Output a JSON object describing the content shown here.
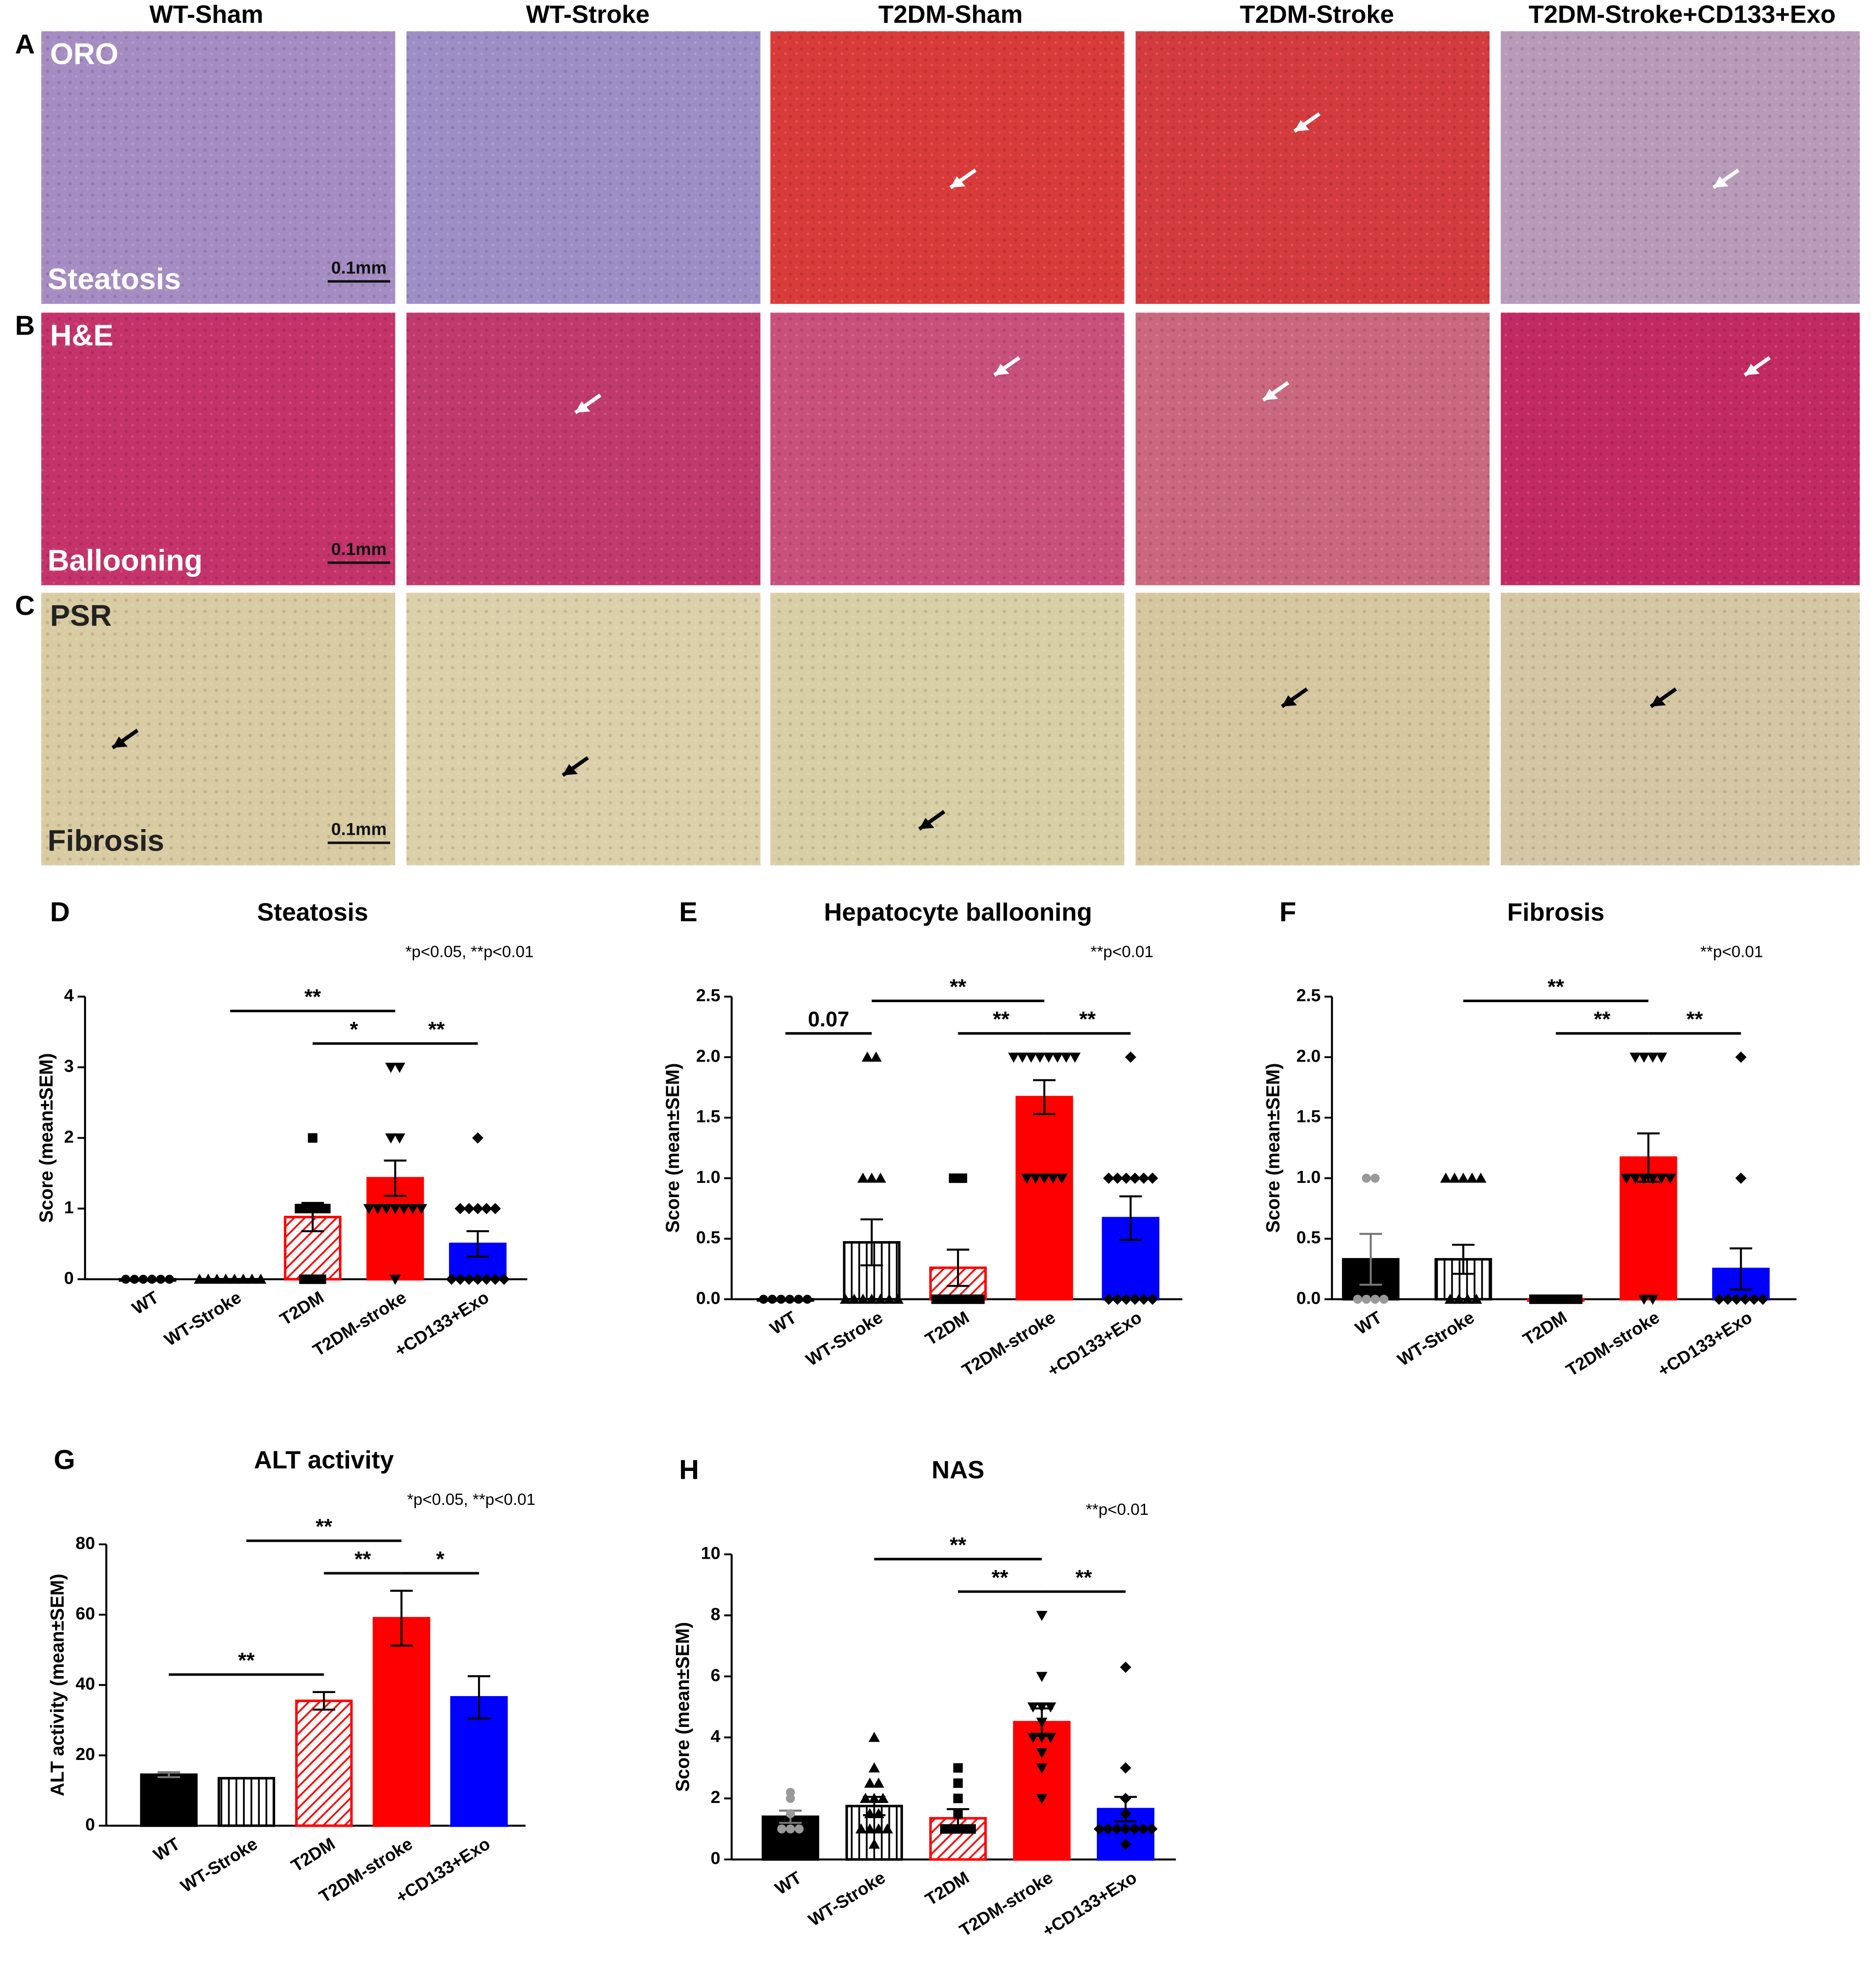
{
  "figure": {
    "columns": [
      "WT-Sham",
      "WT-Stroke",
      "T2DM-Sham",
      "T2DM-Stroke",
      "T2DM-Stroke+CD133+Exo"
    ],
    "rows": [
      {
        "letter": "A",
        "stain": "ORO",
        "feature": "Steatosis",
        "scale_bar": "0.1mm"
      },
      {
        "letter": "B",
        "stain": "H&E",
        "feature": "Ballooning",
        "scale_bar": "0.1mm"
      },
      {
        "letter": "C",
        "stain": "PSR",
        "feature": "Fibrosis",
        "scale_bar": "0.1mm"
      }
    ]
  },
  "chart_data": [
    {
      "type": "bar",
      "panel": "D",
      "title": "Steatosis",
      "note": "*p<0.05, **p<0.01",
      "ylabel": "Score (mean±SEM)",
      "categories": [
        "WT",
        "WT-Stroke",
        "T2DM",
        "T2DM-stroke",
        "+CD133+Exo"
      ],
      "values": [
        0,
        0,
        0.88,
        1.43,
        0.5
      ],
      "errors": [
        0,
        0,
        0.2,
        0.25,
        0.18
      ],
      "points": [
        [
          0,
          0,
          0,
          0,
          0,
          0
        ],
        [
          0,
          0,
          0,
          0,
          0,
          0,
          0,
          0
        ],
        [
          2,
          1,
          1,
          1,
          1,
          0,
          0,
          0
        ],
        [
          3,
          3,
          2,
          2,
          1,
          1,
          1,
          1,
          1,
          1,
          1,
          0
        ],
        [
          2,
          1,
          1,
          1,
          1,
          1,
          0,
          0,
          0,
          0,
          0,
          0,
          0
        ]
      ],
      "colors": [
        "#000000",
        "#000000",
        "#ff0000",
        "#ff0000",
        "#0000ff"
      ],
      "hatch": [
        "none",
        "vertical",
        "diagonal",
        "none",
        "none"
      ],
      "markers": [
        "circle",
        "triangle-up",
        "square",
        "triangle-down",
        "diamond"
      ],
      "point_colors": [
        "#000000",
        "#000000",
        "#000000",
        "#000000",
        "#000000"
      ],
      "ylim": [
        0,
        4
      ],
      "yticks": [
        0,
        1,
        2,
        3,
        4
      ],
      "annotations": [
        {
          "from": "WT-Stroke",
          "to": "T2DM-stroke",
          "label": "**"
        },
        {
          "from": "T2DM",
          "to": "T2DM-stroke",
          "label": "*"
        },
        {
          "from": "T2DM-stroke",
          "to": "+CD133+Exo",
          "label": "**"
        }
      ]
    },
    {
      "type": "bar",
      "panel": "E",
      "title": "Hepatocyte ballooning",
      "note": "**p<0.01",
      "ylabel": "Score (mean±SEM)",
      "categories": [
        "WT",
        "WT-Stroke",
        "T2DM",
        "T2DM-stroke",
        "+CD133+Exo"
      ],
      "values": [
        0,
        0.47,
        0.26,
        1.67,
        0.67
      ],
      "errors": [
        0,
        0.19,
        0.15,
        0.14,
        0.18
      ],
      "points": [
        [
          0,
          0,
          0,
          0,
          0,
          0
        ],
        [
          2,
          2,
          1,
          1,
          1,
          0,
          0,
          0,
          0,
          0,
          0,
          0
        ],
        [
          1,
          1,
          0,
          0,
          0,
          0,
          0,
          0
        ],
        [
          2,
          2,
          2,
          2,
          2,
          2,
          2,
          2,
          1,
          1,
          1,
          1,
          1
        ],
        [
          2,
          1,
          1,
          1,
          1,
          1,
          1,
          0,
          0,
          0,
          0,
          0,
          0
        ]
      ],
      "colors": [
        "#000000",
        "#000000",
        "#ff0000",
        "#ff0000",
        "#0000ff"
      ],
      "hatch": [
        "none",
        "vertical",
        "diagonal",
        "none",
        "none"
      ],
      "markers": [
        "circle",
        "triangle-up",
        "square",
        "triangle-down",
        "diamond"
      ],
      "point_colors": [
        "#000000",
        "#000000",
        "#000000",
        "#000000",
        "#000000"
      ],
      "ylim": [
        0,
        2.5
      ],
      "yticks": [
        {
          "value": 0,
          "label": "0.0"
        },
        0.5,
        {
          "value": 1,
          "label": "1.0"
        },
        1.5,
        {
          "value": 2,
          "label": "2.0"
        },
        2.5
      ],
      "annotations": [
        {
          "from": "WT",
          "to": "WT-Stroke",
          "label": "0.07"
        },
        {
          "from": "WT-Stroke",
          "to": "T2DM-stroke",
          "label": "**"
        },
        {
          "from": "T2DM",
          "to": "T2DM-stroke",
          "label": "**"
        },
        {
          "from": "T2DM-stroke",
          "to": "+CD133+Exo",
          "label": "**"
        }
      ]
    },
    {
      "type": "bar",
      "panel": "F",
      "title": "Fibrosis",
      "note": "**p<0.01",
      "ylabel": "Score (mean±SEM)",
      "categories": [
        "WT",
        "WT-Stroke",
        "T2DM",
        "T2DM-stroke",
        "+CD133+Exo"
      ],
      "values": [
        0.33,
        0.33,
        0,
        1.17,
        0.25
      ],
      "errors": [
        0.21,
        0.12,
        0,
        0.2,
        0.17
      ],
      "points": [
        [
          1,
          1,
          0,
          0,
          0,
          0
        ],
        [
          1,
          1,
          1,
          1,
          1,
          0,
          0,
          0,
          0
        ],
        [
          0,
          0,
          0,
          0,
          0,
          0
        ],
        [
          2,
          2,
          2,
          2,
          1,
          1,
          1,
          1,
          1,
          1,
          0,
          0
        ],
        [
          2,
          1,
          0,
          0,
          0,
          0,
          0,
          0
        ]
      ],
      "colors": [
        "#000000",
        "#000000",
        "#ff0000",
        "#ff0000",
        "#0000ff"
      ],
      "hatch": [
        "none",
        "vertical",
        "diagonal",
        "none",
        "none"
      ],
      "markers": [
        "circle",
        "triangle-up",
        "square",
        "triangle-down",
        "diamond"
      ],
      "point_colors": [
        "#999999",
        "#000000",
        "#000000",
        "#000000",
        "#000000"
      ],
      "ylim": [
        0,
        2.5
      ],
      "yticks": [
        {
          "value": 0,
          "label": "0.0"
        },
        0.5,
        {
          "value": 1,
          "label": "1.0"
        },
        1.5,
        {
          "value": 2,
          "label": "2.0"
        },
        2.5
      ],
      "annotations": [
        {
          "from": "WT-Stroke",
          "to": "T2DM-stroke",
          "label": "**"
        },
        {
          "from": "T2DM",
          "to": "T2DM-stroke",
          "label": "**"
        },
        {
          "from": "T2DM-stroke",
          "to": "+CD133+Exo",
          "label": "**"
        }
      ]
    },
    {
      "type": "bar",
      "panel": "G",
      "title": "ALT activity",
      "note": "*p<0.05, **p<0.01",
      "ylabel": "ALT activity (mean±SEM)",
      "categories": [
        "WT",
        "WT-Stroke",
        "T2DM",
        "T2DM-stroke",
        "+CD133+Exo"
      ],
      "values": [
        14.5,
        13.5,
        35.5,
        59,
        36.5
      ],
      "errors": [
        0.7,
        0,
        2.5,
        7.8,
        6
      ],
      "colors": [
        "#000000",
        "#000000",
        "#ff0000",
        "#ff0000",
        "#0000ff"
      ],
      "hatch": [
        "none",
        "vertical",
        "diagonal",
        "none",
        "none"
      ],
      "ylim": [
        0,
        80
      ],
      "yticks": [
        0,
        20,
        40,
        60,
        80
      ],
      "annotations": [
        {
          "from": "WT",
          "to": "T2DM",
          "label": "**"
        },
        {
          "from": "T2DM",
          "to": "T2DM-stroke",
          "label": "**"
        },
        {
          "from": "T2DM-stroke",
          "to": "+CD133+Exo",
          "label": "*"
        },
        {
          "from": "WT-Stroke",
          "to": "T2DM-stroke",
          "label": "**"
        }
      ]
    },
    {
      "type": "bar",
      "panel": "H",
      "title": "NAS",
      "note": "**p<0.01",
      "ylabel": "Score (mean±SEM)",
      "categories": [
        "WT",
        "WT-Stroke",
        "T2DM",
        "T2DM-stroke",
        "+CD133+Exo"
      ],
      "values": [
        1.4,
        1.75,
        1.35,
        4.5,
        1.65
      ],
      "errors": [
        0.2,
        0.3,
        0.3,
        0.45,
        0.4
      ],
      "points": [
        [
          2.2,
          2,
          1.5,
          1,
          1,
          1
        ],
        [
          4,
          3,
          2.5,
          2.5,
          2,
          2,
          2,
          1.5,
          1.5,
          1,
          1,
          1,
          1,
          0.5
        ],
        [
          3,
          2.5,
          2,
          1.5,
          1,
          1,
          1,
          1
        ],
        [
          8,
          6,
          5,
          5,
          5,
          4.5,
          4,
          4,
          4,
          3.5,
          3,
          2
        ],
        [
          6.3,
          3,
          2,
          1.5,
          1,
          1,
          1,
          1,
          1,
          1,
          1,
          0.5
        ]
      ],
      "colors": [
        "#000000",
        "#000000",
        "#ff0000",
        "#ff0000",
        "#0000ff"
      ],
      "hatch": [
        "none",
        "vertical",
        "diagonal",
        "none",
        "none"
      ],
      "markers": [
        "circle",
        "triangle-up",
        "square",
        "triangle-down",
        "diamond"
      ],
      "point_colors": [
        "#999999",
        "#000000",
        "#000000",
        "#000000",
        "#000000"
      ],
      "ylim": [
        0,
        10
      ],
      "yticks": [
        0,
        2,
        4,
        6,
        8,
        10
      ],
      "annotations": [
        {
          "from": "WT-Stroke",
          "to": "T2DM-stroke",
          "label": "**"
        },
        {
          "from": "T2DM",
          "to": "T2DM-stroke",
          "label": "**"
        },
        {
          "from": "T2DM-stroke",
          "to": "+CD133+Exo",
          "label": "**"
        }
      ]
    }
  ]
}
